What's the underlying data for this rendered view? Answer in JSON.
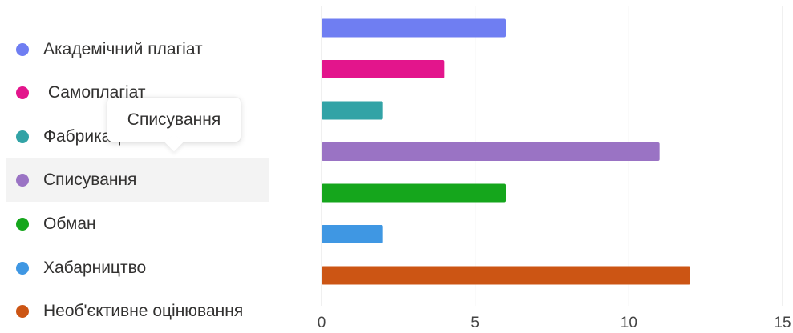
{
  "chart_data": {
    "type": "bar",
    "orientation": "horizontal",
    "categories": [
      "Академічний плагіат",
      "Самоплагіат",
      "Фабрикація",
      "Списування",
      "Обман",
      "Хабарництво",
      "Необ'єктивне оцінювання"
    ],
    "values": [
      6,
      4,
      2,
      11,
      6,
      2,
      12
    ],
    "colors": [
      "#6f7ef2",
      "#e3158c",
      "#32a3a6",
      "#9a73c4",
      "#15a61c",
      "#3f97e3",
      "#cc5514"
    ],
    "xlim": [
      0,
      15
    ],
    "xticks": [
      "0",
      "5",
      "10",
      "15"
    ],
    "grid": true,
    "legend": "left"
  },
  "legend": {
    "items": [
      "Академічний плагіат",
      " Самоплагіат",
      "Фабрикація",
      "Списування",
      "Обман",
      "Хабарництво",
      "Необ'єктивне оцінювання"
    ],
    "hovered_index": 3
  },
  "tooltip": {
    "text": "Списування"
  }
}
